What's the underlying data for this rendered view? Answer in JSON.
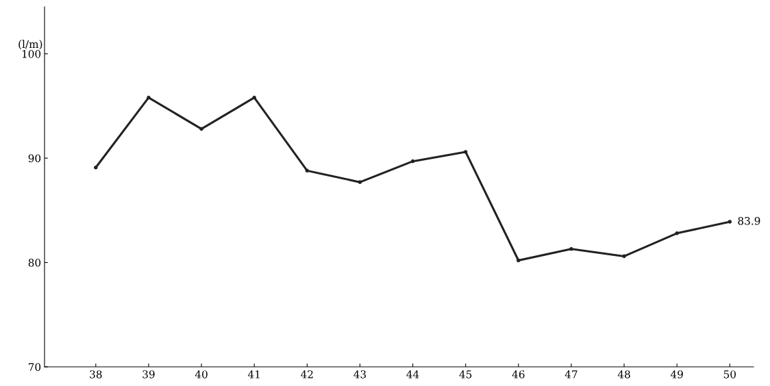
{
  "chart_data": {
    "type": "line",
    "ylabel": "(l/m)",
    "categories": [
      "38",
      "39",
      "40",
      "41",
      "42",
      "43",
      "44",
      "45",
      "46",
      "47",
      "48",
      "49",
      "50"
    ],
    "series": [
      {
        "color": "#222222",
        "values": [
          89.1,
          95.8,
          92.8,
          95.8,
          88.8,
          87.7,
          89.7,
          90.6,
          80.2,
          81.3,
          80.6,
          82.8,
          83.9
        ],
        "value_labels": [
          null,
          null,
          null,
          null,
          null,
          null,
          null,
          null,
          null,
          null,
          null,
          null,
          "83.9"
        ]
      }
    ],
    "ylim": [
      70,
      104.5
    ],
    "yticks": [
      70,
      80,
      90,
      100
    ],
    "grid": false,
    "legend": false,
    "marker": "circle",
    "line_style": "solid"
  }
}
